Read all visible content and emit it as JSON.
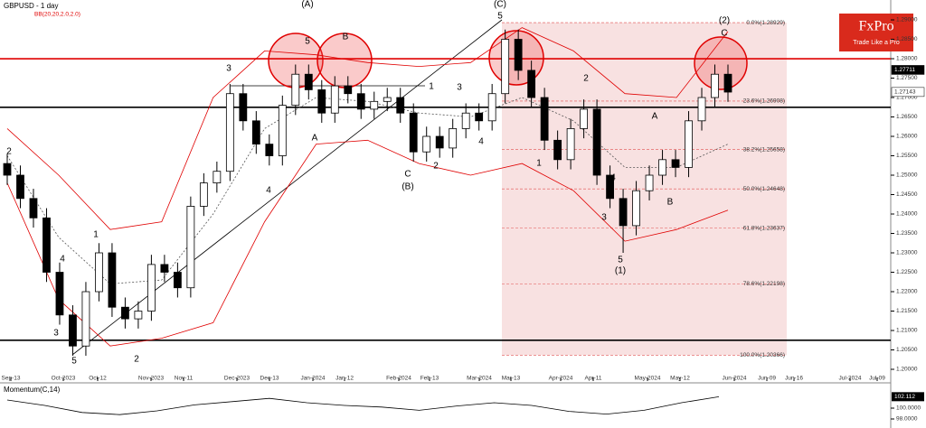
{
  "chart_data": [
    {
      "type": "candlestick",
      "title": "GBPUSD - 1 day",
      "indicator": "BB(20,20,2.0,2.0)",
      "x_labels": [
        "Sep-13",
        "Oct-2023",
        "Oct-12",
        "Nov-2023",
        "Nov-11",
        "Dec-2023",
        "Dec-13",
        "Jan-2024",
        "Jan-12",
        "Feb-2024",
        "Feb-13",
        "Mar-2024",
        "Mar-13",
        "Apr-2024",
        "Apr-11",
        "May-2024",
        "May-12",
        "Jun-2024",
        "Jun-09",
        "Jun-16",
        "Jul-2024",
        "Jul-09"
      ],
      "ylim": [
        1.19791,
        1.29512
      ],
      "yticks": [
        {
          "value": 1.29,
          "label": "1.29000"
        },
        {
          "value": 1.285,
          "label": "1.28500"
        },
        {
          "value": 1.28,
          "label": "1.28000"
        },
        {
          "value": 1.275,
          "label": "1.27500"
        },
        {
          "value": 1.27,
          "label": "1.27000"
        },
        {
          "value": 1.265,
          "label": "1.26500"
        },
        {
          "value": 1.26,
          "label": "1.26000"
        },
        {
          "value": 1.255,
          "label": "1.25500"
        },
        {
          "value": 1.25,
          "label": "1.25000"
        },
        {
          "value": 1.245,
          "label": "1.24500"
        },
        {
          "value": 1.24,
          "label": "1.24000"
        },
        {
          "value": 1.235,
          "label": "1.23500"
        },
        {
          "value": 1.23,
          "label": "1.23000"
        },
        {
          "value": 1.225,
          "label": "1.22500"
        },
        {
          "value": 1.22,
          "label": "1.22000"
        },
        {
          "value": 1.215,
          "label": "1.21500"
        },
        {
          "value": 1.21,
          "label": "1.21000"
        },
        {
          "value": 1.205,
          "label": "1.20500"
        },
        {
          "value": 1.2,
          "label": "1.20000"
        }
      ],
      "grid": false,
      "up_color": "#ffffff",
      "down_color": "#000000",
      "candles": [
        [
          1.253,
          1.2555,
          1.2475,
          1.25
        ],
        [
          1.25,
          1.2525,
          1.2415,
          1.244
        ],
        [
          1.244,
          1.2465,
          1.2365,
          1.239
        ],
        [
          1.239,
          1.2415,
          1.2225,
          1.225
        ],
        [
          1.225,
          1.2275,
          1.2115,
          1.214
        ],
        [
          1.214,
          1.2165,
          1.2035,
          1.206
        ],
        [
          1.206,
          1.2225,
          1.2035,
          1.22
        ],
        [
          1.22,
          1.2325,
          1.2175,
          1.23
        ],
        [
          1.23,
          1.2325,
          1.2135,
          1.216
        ],
        [
          1.216,
          1.2185,
          1.2105,
          1.213
        ],
        [
          1.213,
          1.2175,
          1.2105,
          1.215
        ],
        [
          1.215,
          1.2295,
          1.2125,
          1.227
        ],
        [
          1.227,
          1.2295,
          1.2225,
          1.225
        ],
        [
          1.225,
          1.2275,
          1.2185,
          1.221
        ],
        [
          1.221,
          1.2445,
          1.2185,
          1.242
        ],
        [
          1.242,
          1.2505,
          1.2395,
          1.248
        ],
        [
          1.248,
          1.2535,
          1.2455,
          1.251
        ],
        [
          1.251,
          1.2735,
          1.2485,
          1.271
        ],
        [
          1.271,
          1.2735,
          1.2615,
          1.264
        ],
        [
          1.264,
          1.2665,
          1.2555,
          1.258
        ],
        [
          1.258,
          1.2605,
          1.2525,
          1.255
        ],
        [
          1.255,
          1.2705,
          1.2525,
          1.268
        ],
        [
          1.268,
          1.2785,
          1.2655,
          1.276
        ],
        [
          1.276,
          1.2785,
          1.2695,
          1.272
        ],
        [
          1.272,
          1.2745,
          1.2635,
          1.266
        ],
        [
          1.266,
          1.2755,
          1.2635,
          1.273
        ],
        [
          1.273,
          1.2755,
          1.2685,
          1.271
        ],
        [
          1.271,
          1.2735,
          1.2645,
          1.267
        ],
        [
          1.267,
          1.2715,
          1.2645,
          1.269
        ],
        [
          1.269,
          1.2725,
          1.2665,
          1.27
        ],
        [
          1.27,
          1.2725,
          1.2635,
          1.266
        ],
        [
          1.266,
          1.2685,
          1.2535,
          1.256
        ],
        [
          1.256,
          1.2625,
          1.2535,
          1.26
        ],
        [
          1.26,
          1.2625,
          1.2545,
          1.257
        ],
        [
          1.257,
          1.2645,
          1.2545,
          1.262
        ],
        [
          1.262,
          1.2685,
          1.2595,
          1.266
        ],
        [
          1.266,
          1.2685,
          1.2615,
          1.264
        ],
        [
          1.264,
          1.2735,
          1.2615,
          1.271
        ],
        [
          1.271,
          1.2875,
          1.2685,
          1.285
        ],
        [
          1.285,
          1.2875,
          1.2745,
          1.277
        ],
        [
          1.277,
          1.2795,
          1.2675,
          1.27
        ],
        [
          1.27,
          1.2725,
          1.2565,
          1.259
        ],
        [
          1.259,
          1.2615,
          1.2515,
          1.254
        ],
        [
          1.254,
          1.2645,
          1.2515,
          1.262
        ],
        [
          1.262,
          1.2695,
          1.2595,
          1.267
        ],
        [
          1.267,
          1.2695,
          1.2475,
          1.25
        ],
        [
          1.25,
          1.2525,
          1.2415,
          1.244
        ],
        [
          1.244,
          1.2465,
          1.23,
          1.237
        ],
        [
          1.237,
          1.2485,
          1.2345,
          1.246
        ],
        [
          1.246,
          1.2525,
          1.2435,
          1.25
        ],
        [
          1.25,
          1.2565,
          1.2475,
          1.254
        ],
        [
          1.254,
          1.2565,
          1.2495,
          1.252
        ],
        [
          1.252,
          1.2665,
          1.2495,
          1.264
        ],
        [
          1.264,
          1.2725,
          1.2615,
          1.27
        ],
        [
          1.27,
          1.2785,
          1.2675,
          1.276
        ],
        [
          1.276,
          1.2785,
          1.2689,
          1.2714
        ]
      ],
      "bands": {
        "color": "#e00000",
        "mid_color": "#555555",
        "upper": [
          1.262,
          1.25,
          1.236,
          1.238,
          1.27,
          1.282,
          1.281,
          1.279,
          1.278,
          1.279,
          1.288,
          1.282,
          1.271,
          1.27,
          1.287
        ],
        "middle": [
          1.255,
          1.234,
          1.222,
          1.223,
          1.24,
          1.262,
          1.27,
          1.269,
          1.266,
          1.265,
          1.27,
          1.264,
          1.252,
          1.252,
          1.258
        ],
        "lower": [
          1.248,
          1.218,
          1.206,
          1.208,
          1.212,
          1.238,
          1.258,
          1.259,
          1.253,
          1.25,
          1.253,
          1.246,
          1.233,
          1.236,
          1.241
        ]
      },
      "levels": [
        {
          "value": 1.28,
          "color": "#e00000"
        },
        {
          "value": 1.2675,
          "color": "#000000"
        },
        {
          "value": 1.2075,
          "color": "#000000"
        }
      ],
      "fib": {
        "color": "#e05050",
        "fill": "#f6d9d9",
        "levels": [
          {
            "value": 1.28929,
            "label": "0.0%(1.28929)"
          },
          {
            "value": 1.26908,
            "label": "23.6%(1.26908)"
          },
          {
            "value": 1.25658,
            "label": "38.2%(1.25658)"
          },
          {
            "value": 1.24648,
            "label": "50.0%(1.24648)"
          },
          {
            "value": 1.23637,
            "label": "61.8%(1.23637)"
          },
          {
            "value": 1.22198,
            "label": "78.6%(1.22198)"
          },
          {
            "value": 1.20366,
            "label": "100.0%(1.20366)"
          }
        ]
      },
      "price_labels": [
        {
          "value": 1.27711,
          "label": "1.27711"
        },
        {
          "value": 1.27143,
          "label": "1.27143"
        }
      ],
      "wave_labels": [
        "(A)",
        "5",
        "B",
        "A",
        "C",
        "(B)",
        "(C)",
        "5",
        "(2)",
        "C",
        "5",
        "(1)",
        "1",
        "2",
        "3",
        "4",
        "5",
        "2",
        "3",
        "4",
        "1",
        "2",
        "3",
        "4",
        "2",
        "1",
        "3",
        "4",
        "A",
        "B"
      ]
    },
    {
      "type": "line",
      "title": "Momentum(C,14)",
      "ylim": [
        97,
        104
      ],
      "yticks": [
        {
          "value": 100,
          "label": "100.0000"
        },
        {
          "value": 98,
          "label": "98.0000"
        }
      ],
      "color": "#000000",
      "values": [
        101.5,
        100.5,
        99.2,
        98.8,
        99.5,
        100.6,
        101.2,
        101.8,
        101.0,
        100.5,
        100.2,
        99.6,
        100.4,
        101.0,
        100.5,
        99.4,
        98.9,
        99.6,
        101.0,
        102.1
      ],
      "last_label": {
        "value": 102.112,
        "label": "102.112"
      }
    }
  ],
  "logo": {
    "name": "FxPro",
    "tagline": "Trade Like a Pro"
  }
}
